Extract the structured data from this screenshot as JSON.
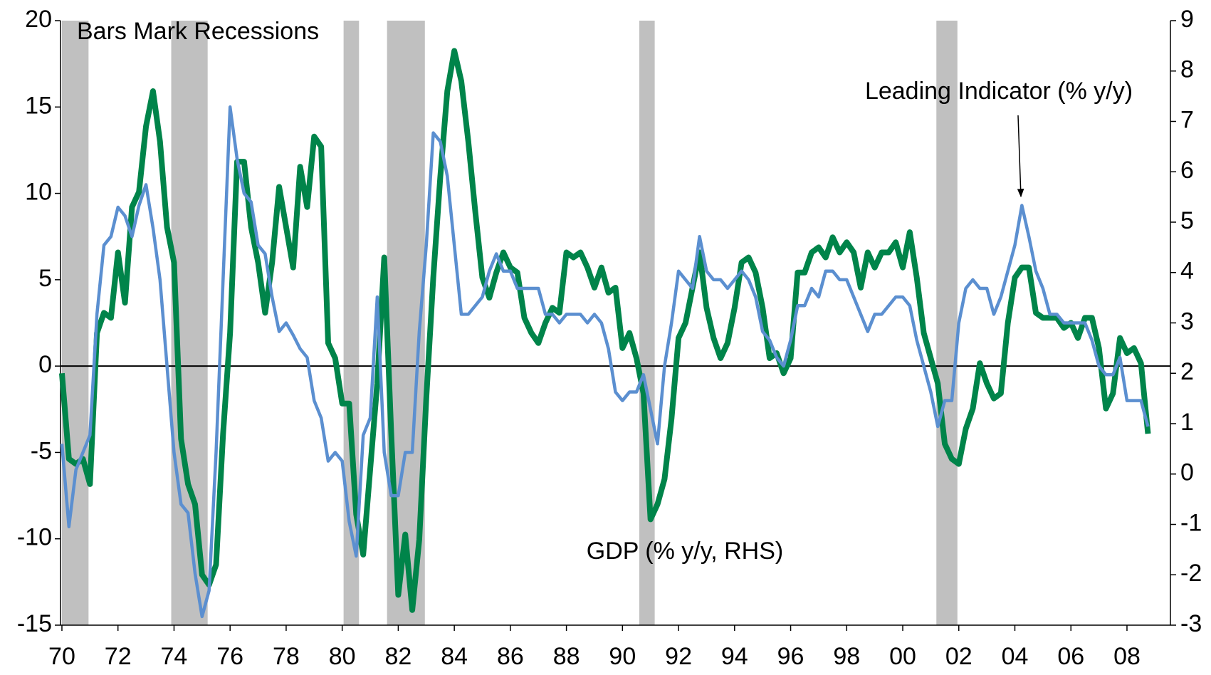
{
  "chart_data": {
    "type": "line",
    "annotations": [
      "Bars Mark Recessions"
    ],
    "x": [
      1970,
      1970.25,
      1970.5,
      1970.75,
      1971,
      1971.25,
      1971.5,
      1971.75,
      1972,
      1972.25,
      1972.5,
      1972.75,
      1973,
      1973.25,
      1973.5,
      1973.75,
      1974,
      1974.25,
      1974.5,
      1974.75,
      1975,
      1975.25,
      1975.5,
      1975.75,
      1976,
      1976.25,
      1976.5,
      1976.75,
      1977,
      1977.25,
      1977.5,
      1977.75,
      1978,
      1978.25,
      1978.5,
      1978.75,
      1979,
      1979.25,
      1979.5,
      1979.75,
      1980,
      1980.25,
      1980.5,
      1980.75,
      1981,
      1981.25,
      1981.5,
      1981.75,
      1982,
      1982.25,
      1982.5,
      1982.75,
      1983,
      1983.25,
      1983.5,
      1983.75,
      1984,
      1984.25,
      1984.5,
      1984.75,
      1985,
      1985.25,
      1985.5,
      1985.75,
      1986,
      1986.25,
      1986.5,
      1986.75,
      1987,
      1987.25,
      1987.5,
      1987.75,
      1988,
      1988.25,
      1988.5,
      1988.75,
      1989,
      1989.25,
      1989.5,
      1989.75,
      1990,
      1990.25,
      1990.5,
      1990.75,
      1991,
      1991.25,
      1991.5,
      1991.75,
      1992,
      1992.25,
      1992.5,
      1992.75,
      1993,
      1993.25,
      1993.5,
      1993.75,
      1994,
      1994.25,
      1994.5,
      1994.75,
      1995,
      1995.25,
      1995.5,
      1995.75,
      1996,
      1996.25,
      1996.5,
      1996.75,
      1997,
      1997.25,
      1997.5,
      1997.75,
      1998,
      1998.25,
      1998.5,
      1998.75,
      1999,
      1999.25,
      1999.5,
      1999.75,
      2000,
      2000.25,
      2000.5,
      2000.75,
      2001,
      2001.25,
      2001.5,
      2001.75,
      2002,
      2002.25,
      2002.5,
      2002.75,
      2003,
      2003.25,
      2003.5,
      2003.75,
      2004,
      2004.25,
      2004.5,
      2004.75,
      2005,
      2005.25,
      2005.5,
      2005.75,
      2006,
      2006.25,
      2006.5,
      2006.75,
      2007,
      2007.25,
      2007.5,
      2007.75,
      2008,
      2008.25,
      2008.5,
      2008.75
    ],
    "series": [
      {
        "name": "GDP (% y/y, RHS)",
        "color": "#00844a",
        "axis": "y2",
        "values": [
          2.0,
          0.3,
          0.2,
          0.3,
          -0.2,
          2.8,
          3.2,
          3.1,
          4.4,
          3.4,
          5.3,
          5.6,
          6.9,
          7.6,
          6.6,
          4.9,
          4.2,
          0.7,
          -0.2,
          -0.6,
          -2.0,
          -2.2,
          -1.8,
          0.8,
          2.8,
          6.2,
          6.2,
          4.9,
          4.2,
          3.2,
          4.2,
          5.7,
          4.9,
          4.1,
          6.1,
          5.3,
          6.7,
          6.5,
          2.6,
          2.3,
          1.4,
          1.4,
          -0.8,
          -1.6,
          0.1,
          1.8,
          4.3,
          0.8,
          -2.4,
          -1.2,
          -2.7,
          -1.3,
          1.5,
          3.9,
          5.9,
          7.6,
          8.4,
          7.8,
          6.6,
          5.2,
          3.9,
          3.5,
          4.0,
          4.4,
          4.1,
          4.0,
          3.1,
          2.8,
          2.6,
          3.0,
          3.3,
          3.2,
          4.4,
          4.3,
          4.4,
          4.1,
          3.7,
          4.1,
          3.6,
          3.7,
          2.5,
          2.8,
          2.3,
          1.6,
          -0.9,
          -0.6,
          -0.1,
          1.1,
          2.7,
          3.0,
          3.7,
          4.4,
          3.3,
          2.7,
          2.3,
          2.6,
          3.3,
          4.2,
          4.3,
          4.0,
          3.3,
          2.3,
          2.4,
          2.0,
          2.3,
          4.0,
          4.0,
          4.4,
          4.5,
          4.3,
          4.7,
          4.4,
          4.6,
          4.4,
          3.7,
          4.4,
          4.1,
          4.4,
          4.4,
          4.6,
          4.1,
          4.8,
          3.9,
          2.8,
          2.3,
          1.8,
          0.6,
          0.3,
          0.2,
          0.9,
          1.3,
          2.2,
          1.8,
          1.5,
          1.6,
          3.0,
          3.9,
          4.1,
          4.1,
          3.2,
          3.1,
          3.1,
          3.1,
          2.9,
          3.0,
          2.7,
          3.1,
          3.1,
          2.5,
          1.3,
          1.6,
          2.7,
          2.4,
          2.5,
          2.2,
          0.8
        ]
      },
      {
        "name": "Leading Indicator (% y/y)",
        "color": "#5b8fd0",
        "values": [
          -4.5,
          -9.3,
          -6,
          -5,
          -4,
          3,
          7,
          7.5,
          9.2,
          8.7,
          7.5,
          9.3,
          10.5,
          8,
          5,
          0,
          -5,
          -8,
          -8.5,
          -12,
          -14.5,
          -13,
          -5,
          5,
          15,
          12,
          10,
          9.5,
          7,
          6.5,
          4,
          2,
          2.5,
          1.8,
          1,
          0.5,
          -2,
          -3,
          -5.5,
          -5,
          -5.5,
          -9,
          -11,
          -4,
          -3,
          4,
          -5,
          -7.5,
          -7.5,
          -5,
          -5,
          2,
          7,
          13.5,
          13,
          11,
          7,
          3,
          3,
          3.5,
          4,
          5.5,
          6.5,
          5.5,
          5.5,
          4.5,
          4.5,
          4.5,
          4.5,
          3,
          3,
          2.5,
          3,
          3,
          3,
          2.5,
          3,
          2.5,
          1,
          -1.5,
          -2,
          -1.5,
          -1.5,
          -0.5,
          -2.5,
          -4.5,
          0,
          2.5,
          5.5,
          5,
          4.5,
          7.5,
          5.5,
          5,
          5,
          4.5,
          5,
          5.5,
          5,
          4,
          2,
          1.5,
          0.5,
          0,
          1.5,
          3.5,
          3.5,
          4.5,
          4,
          5.5,
          5.5,
          5,
          5,
          4,
          3,
          2,
          3,
          3,
          3.5,
          4,
          4,
          3.5,
          1.5,
          0,
          -1.5,
          -3.5,
          -2,
          -2,
          2.5,
          4.5,
          5,
          4.5,
          4.5,
          3,
          4,
          5.5,
          7,
          9.3,
          7.5,
          5.5,
          4.5,
          3,
          3,
          2.5,
          2.5,
          2.5,
          2.5,
          1.5,
          0,
          -0.5,
          -0.5,
          0.5,
          -2,
          -2,
          -2,
          -3.5
        ]
      }
    ],
    "recessions": [
      [
        1970.0,
        1970.95
      ],
      [
        1973.9,
        1975.2
      ],
      [
        1980.05,
        1980.6
      ],
      [
        1981.6,
        1982.95
      ],
      [
        1990.6,
        1991.15
      ],
      [
        2001.2,
        2001.95
      ]
    ],
    "recession_color": "#c0c0c0",
    "xlim": [
      1969.95,
      2009.55
    ],
    "xticks": [
      {
        "value": 1970,
        "label": "70"
      },
      {
        "value": 1972,
        "label": "72"
      },
      {
        "value": 1974,
        "label": "74"
      },
      {
        "value": 1976,
        "label": "76"
      },
      {
        "value": 1978,
        "label": "78"
      },
      {
        "value": 1980,
        "label": "80"
      },
      {
        "value": 1982,
        "label": "82"
      },
      {
        "value": 1984,
        "label": "84"
      },
      {
        "value": 1986,
        "label": "86"
      },
      {
        "value": 1988,
        "label": "88"
      },
      {
        "value": 1990,
        "label": "90"
      },
      {
        "value": 1992,
        "label": "92"
      },
      {
        "value": 1994,
        "label": "94"
      },
      {
        "value": 1996,
        "label": "96"
      },
      {
        "value": 1998,
        "label": "98"
      },
      {
        "value": 2000,
        "label": "00"
      },
      {
        "value": 2002,
        "label": "02"
      },
      {
        "value": 2004,
        "label": "04"
      },
      {
        "value": 2006,
        "label": "06"
      },
      {
        "value": 2008,
        "label": "08"
      }
    ],
    "ylim": [
      -15,
      20
    ],
    "yticks": [
      -15,
      -10,
      -5,
      0,
      5,
      10,
      15,
      20
    ],
    "y2lim": [
      -3,
      9
    ],
    "y2ticks": [
      -3,
      -2,
      -1,
      0,
      1,
      2,
      3,
      4,
      5,
      6,
      7,
      8,
      9
    ],
    "grid": false
  }
}
